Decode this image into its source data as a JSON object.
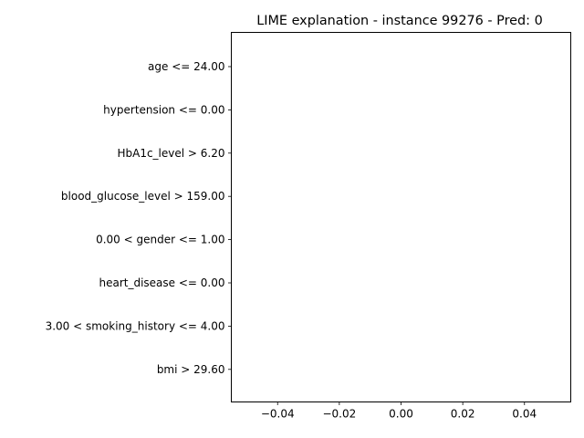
{
  "chart_data": {
    "type": "bar",
    "orientation": "horizontal",
    "title": "LIME explanation - instance 99276 - Pred: 0",
    "categories": [
      "age <= 24.00",
      "hypertension <= 0.00",
      "HbA1c_level > 6.20",
      "blood_glucose_level > 159.00",
      "0.00 < gender <= 1.00",
      "heart_disease <= 0.00",
      "3.00 < smoking_history <= 4.00",
      "bmi > 29.60"
    ],
    "values": [
      0,
      0,
      0,
      0,
      0,
      0,
      0,
      0
    ],
    "xlim": [
      -0.055,
      0.055
    ],
    "xticks": [
      -0.04,
      -0.02,
      0.0,
      0.02,
      0.04
    ],
    "xtick_labels": [
      "−0.04",
      "−0.02",
      "0.00",
      "0.02",
      "0.04"
    ],
    "grid": false,
    "colors": {
      "frame": "#000000",
      "background": "#ffffff"
    }
  }
}
